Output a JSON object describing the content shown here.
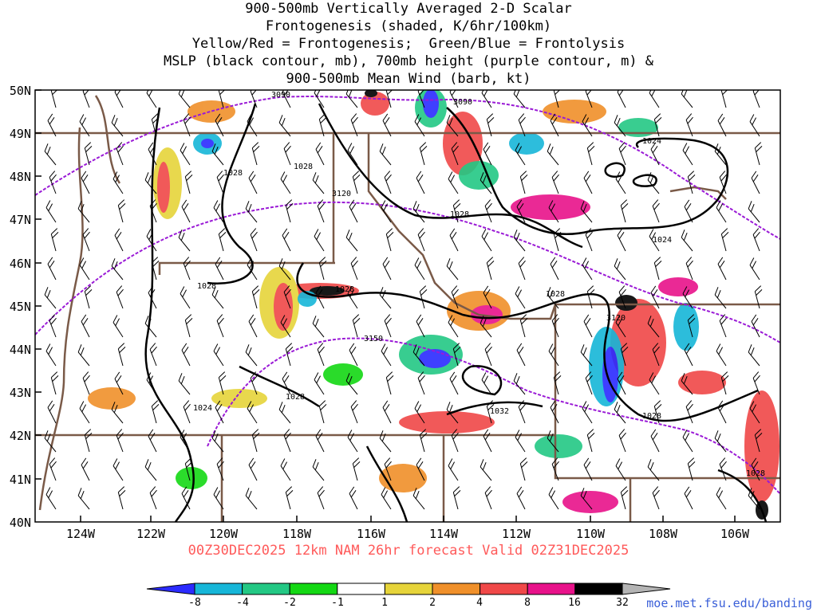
{
  "title_lines": [
    "900-500mb Vertically Averaged 2-D Scalar",
    "Frontogenesis (shaded, K/6hr/100km)",
    "Yellow/Red = Frontogenesis;  Green/Blue = Frontolysis",
    "MSLP (black contour, mb), 700mb height (purple contour, m) &",
    "900-500mb Mean Wind (barb, kt)"
  ],
  "lat_labels": [
    "50N",
    "49N",
    "48N",
    "47N",
    "46N",
    "45N",
    "44N",
    "43N",
    "42N",
    "41N",
    "40N"
  ],
  "lon_labels": [
    "124W",
    "122W",
    "120W",
    "118W",
    "116W",
    "114W",
    "112W",
    "110W",
    "108W",
    "106W"
  ],
  "valid_text": "00Z30DEC2025 12km NAM 26hr forecast Valid 02Z31DEC2025",
  "credit": "moe.met.fsu.edu/banding",
  "colorbar": {
    "labels": [
      "-8",
      "-4",
      "-2",
      "-1",
      "1",
      "2",
      "4",
      "8",
      "16",
      "32"
    ],
    "colors": [
      "#2b2bff",
      "#16b6d8",
      "#23c884",
      "#14d814",
      "#ffffff",
      "#e6d43a",
      "#f0902a",
      "#f04848",
      "#e8128a",
      "#000000",
      "#b4b4b4"
    ]
  },
  "mslp_labels": [
    "1028",
    "1028",
    "1028",
    "1028",
    "1028",
    "1028",
    "1024",
    "1024",
    "1028",
    "1032",
    "1028",
    "1024",
    "1028"
  ],
  "height_labels": [
    "3090",
    "3090",
    "3120",
    "3150",
    "3120"
  ],
  "colors": {
    "mslp": "#000000",
    "height": "#9a1ad6",
    "borders": "#7a5a48",
    "grid": "#000000"
  }
}
